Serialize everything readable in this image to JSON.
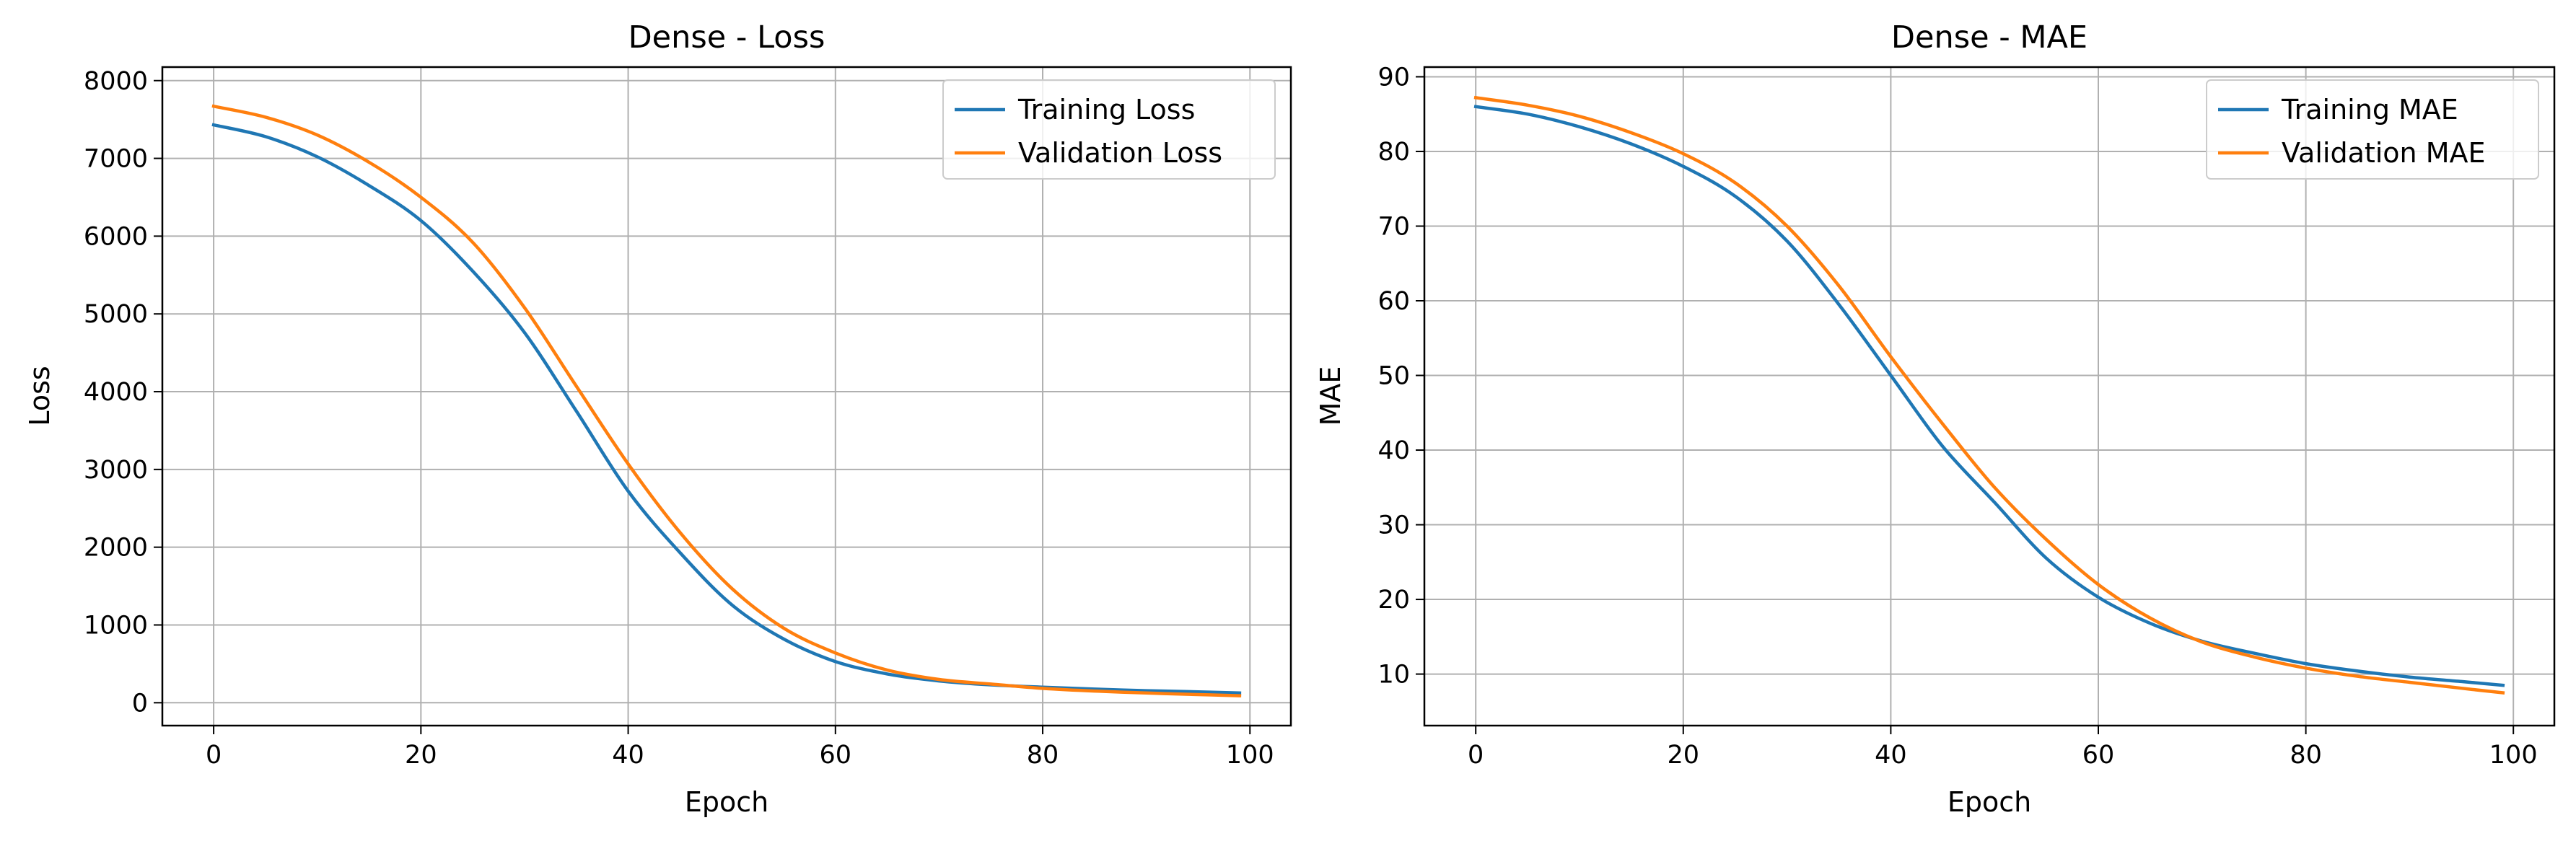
{
  "chart_data": [
    {
      "type": "line",
      "title": "Dense - Loss",
      "xlabel": "Epoch",
      "ylabel": "Loss",
      "xlim": [
        -4.95,
        103.95
      ],
      "ylim": [
        -294,
        8174
      ],
      "xticks": [
        0,
        20,
        40,
        60,
        80,
        100
      ],
      "yticks": [
        0,
        1000,
        2000,
        3000,
        4000,
        5000,
        6000,
        7000,
        8000
      ],
      "grid": true,
      "legend_position": "upper right",
      "curve_model": "logistic",
      "series": [
        {
          "name": "Training Loss",
          "color": "#1f77b4",
          "x": [
            0,
            5,
            10,
            15,
            20,
            25,
            30,
            35,
            40,
            45,
            50,
            55,
            60,
            65,
            70,
            75,
            80,
            85,
            90,
            95,
            99
          ],
          "y": [
            7430,
            7280,
            7020,
            6650,
            6200,
            5550,
            4760,
            3750,
            2720,
            1930,
            1260,
            820,
            530,
            370,
            280,
            230,
            200,
            175,
            155,
            140,
            125
          ]
        },
        {
          "name": "Validation Loss",
          "color": "#ff7f0e",
          "x": [
            0,
            5,
            10,
            15,
            20,
            25,
            30,
            35,
            40,
            45,
            50,
            55,
            60,
            65,
            70,
            75,
            80,
            85,
            90,
            95,
            99
          ],
          "y": [
            7670,
            7530,
            7300,
            6950,
            6500,
            5920,
            5080,
            4070,
            3070,
            2190,
            1470,
            960,
            640,
            420,
            300,
            240,
            185,
            150,
            125,
            105,
            90
          ]
        }
      ]
    },
    {
      "type": "line",
      "title": "Dense - MAE",
      "xlabel": "Epoch",
      "ylabel": "MAE",
      "xlim": [
        -4.95,
        103.95
      ],
      "ylim": [
        3.1,
        91.3
      ],
      "xticks": [
        0,
        20,
        40,
        60,
        80,
        100
      ],
      "yticks": [
        10,
        20,
        30,
        40,
        50,
        60,
        70,
        80,
        90
      ],
      "grid": true,
      "legend_position": "upper right",
      "curve_model": "logistic",
      "series": [
        {
          "name": "Training MAE",
          "color": "#1f77b4",
          "x": [
            0,
            5,
            10,
            15,
            20,
            25,
            30,
            35,
            40,
            45,
            50,
            55,
            60,
            65,
            70,
            75,
            80,
            85,
            90,
            95,
            99
          ],
          "y": [
            86.0,
            85.0,
            83.3,
            81.0,
            78.0,
            74.0,
            68.0,
            59.5,
            50.0,
            40.5,
            33.0,
            25.5,
            20.3,
            16.8,
            14.4,
            12.8,
            11.4,
            10.4,
            9.6,
            9.0,
            8.5
          ]
        },
        {
          "name": "Validation MAE",
          "color": "#ff7f0e",
          "x": [
            0,
            5,
            10,
            15,
            20,
            25,
            30,
            35,
            40,
            45,
            50,
            55,
            60,
            65,
            70,
            75,
            80,
            85,
            90,
            95,
            99
          ],
          "y": [
            87.2,
            86.2,
            84.7,
            82.5,
            79.7,
            75.8,
            70.0,
            62.0,
            52.5,
            43.5,
            35.0,
            28.0,
            22.0,
            17.5,
            14.3,
            12.3,
            10.8,
            9.7,
            8.9,
            8.1,
            7.5
          ]
        }
      ]
    }
  ]
}
